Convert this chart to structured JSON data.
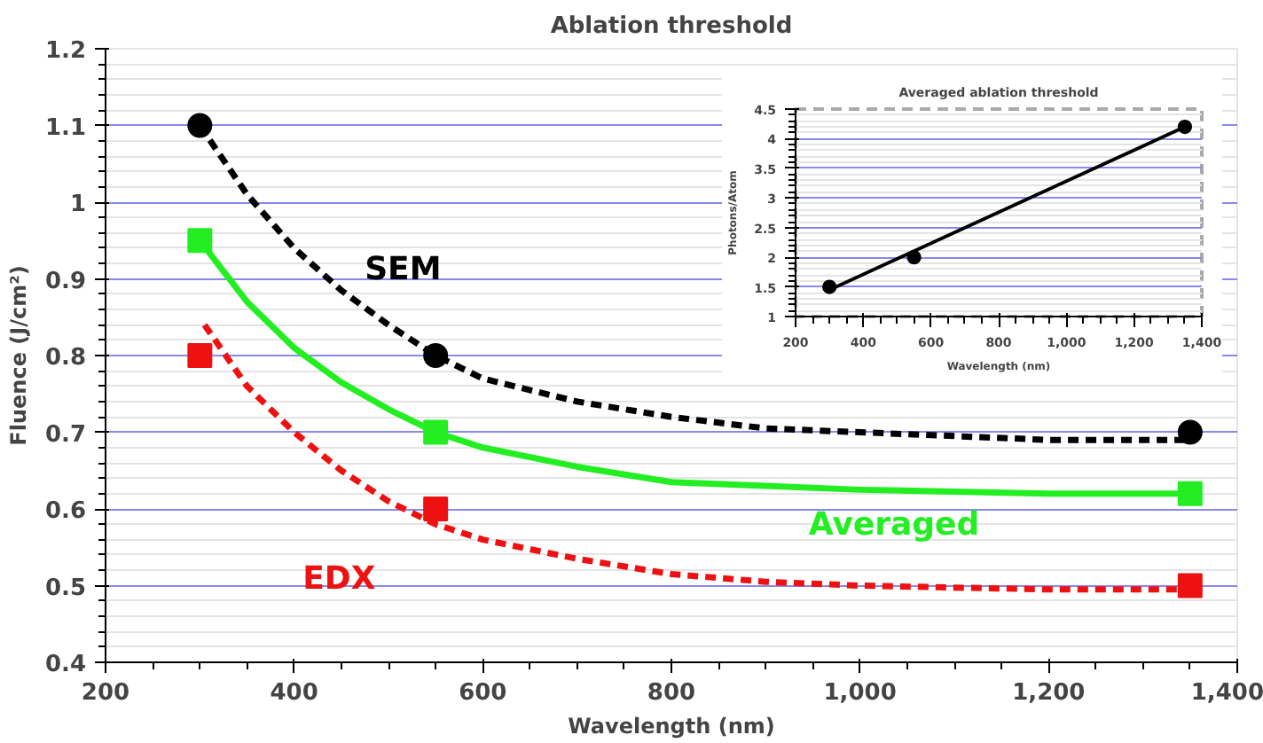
{
  "chart_data": [
    {
      "type": "scatter",
      "title": "Ablation threshold",
      "xlabel": "Wavelength (nm)",
      "ylabel": "Fluence (J/cm²)",
      "xlim": [
        200,
        1400
      ],
      "ylim": [
        0.4,
        1.2
      ],
      "xticks": [
        200,
        400,
        600,
        800,
        {
          "value": 1000,
          "label": "1,000"
        },
        {
          "value": 1200,
          "label": "1,200"
        },
        {
          "value": 1400,
          "label": "1,400"
        }
      ],
      "yticks": [
        0.4,
        0.5,
        0.6,
        0.7,
        0.8,
        0.9,
        1,
        1.1,
        1.2
      ],
      "grid": "y",
      "series": [
        {
          "name": "SEM",
          "color": "#000000",
          "marker": "circle",
          "x": [
            300,
            550,
            1350
          ],
          "values": [
            1.1,
            0.8,
            0.7
          ]
        },
        {
          "name": "Averaged",
          "color": "#22ee22",
          "marker": "square",
          "x": [
            300,
            550,
            1350
          ],
          "values": [
            0.95,
            0.7,
            0.62
          ]
        },
        {
          "name": "EDX",
          "color": "#ee1111",
          "marker": "square",
          "x": [
            300,
            550,
            1350
          ],
          "values": [
            0.8,
            0.6,
            0.5
          ]
        },
        {
          "type": "line",
          "color": "#000000",
          "line_style": "dashed",
          "marker": "none",
          "x": [
            300,
            350,
            400,
            450,
            500,
            550,
            600,
            700,
            800,
            900,
            1000,
            1100,
            1200,
            1350
          ],
          "values": [
            1.1,
            1.01,
            0.94,
            0.885,
            0.84,
            0.8,
            0.77,
            0.74,
            0.72,
            0.705,
            0.7,
            0.695,
            0.69,
            0.69
          ]
        },
        {
          "type": "line",
          "color": "#22ee22",
          "line_style": "solid",
          "marker": "none",
          "x": [
            300,
            350,
            400,
            450,
            500,
            550,
            600,
            700,
            800,
            900,
            1000,
            1200,
            1350
          ],
          "values": [
            0.95,
            0.87,
            0.81,
            0.765,
            0.73,
            0.7,
            0.68,
            0.655,
            0.635,
            0.63,
            0.625,
            0.62,
            0.62
          ]
        },
        {
          "type": "line",
          "color": "#ee1111",
          "line_style": "dashed",
          "marker": "none",
          "x": [
            305,
            350,
            400,
            450,
            500,
            550,
            600,
            700,
            800,
            900,
            1000,
            1200,
            1350
          ],
          "values": [
            0.84,
            0.76,
            0.7,
            0.65,
            0.61,
            0.58,
            0.56,
            0.535,
            0.515,
            0.505,
            0.5,
            0.495,
            0.495
          ]
        }
      ]
    },
    {
      "type": "scatter",
      "title": "Averaged ablation threshold",
      "xlabel": "Wavelength (nm)",
      "ylabel": "Photons/Atom",
      "xlim": [
        200,
        1400
      ],
      "ylim": [
        1,
        4.5
      ],
      "xticks": [
        200,
        400,
        600,
        800,
        {
          "value": 1000,
          "label": "1,000"
        },
        {
          "value": 1200,
          "label": "1,200"
        },
        {
          "value": 1400,
          "label": "1,400"
        }
      ],
      "yticks": [
        1,
        1.5,
        2,
        2.5,
        3,
        3.5,
        4,
        4.5
      ],
      "grid": "y",
      "series": [
        {
          "color": "#000000",
          "marker": "circle",
          "x": [
            300,
            550,
            1350
          ],
          "values": [
            1.5,
            2.0,
            4.2
          ]
        },
        {
          "type": "line",
          "color": "#000000",
          "line_style": "solid",
          "marker": "none",
          "x": [
            300,
            1350
          ],
          "values": [
            1.45,
            4.2
          ]
        }
      ]
    }
  ]
}
